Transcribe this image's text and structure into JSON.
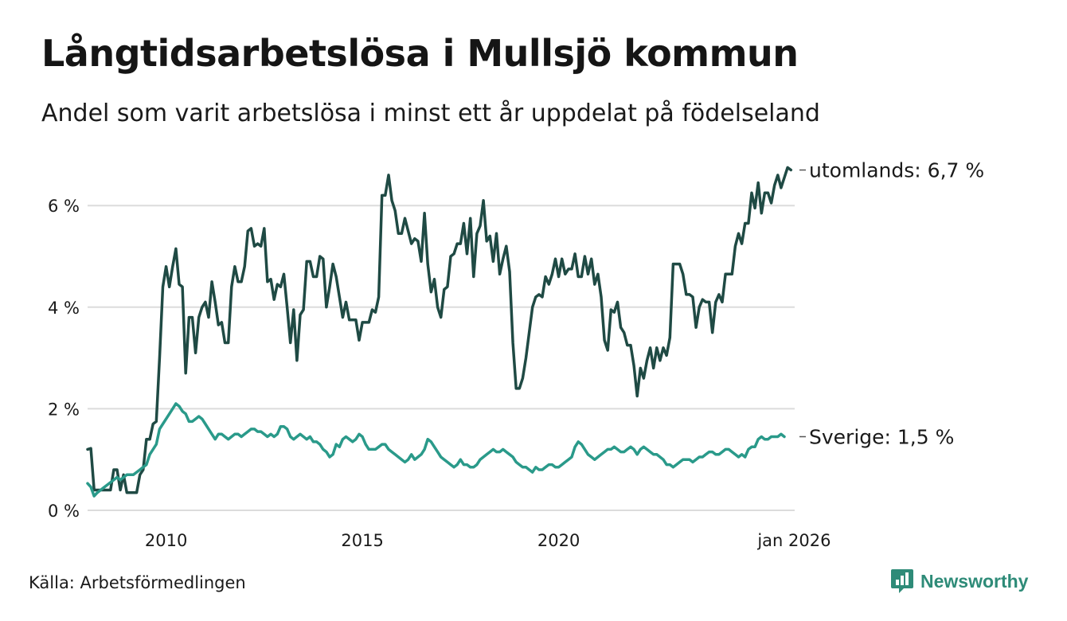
{
  "title": "Långtidsarbetslösa i Mullsjö kommun",
  "subtitle": "Andel som varit arbetslösa i minst ett år uppdelat på födelseland",
  "source": "Källa: Arbetsförmedlingen",
  "brand": "Newsworthy",
  "colors": {
    "utomlands": "#1f4a44",
    "sverige": "#2a9a8a",
    "grid": "#dcdcdc",
    "brand": "#2e8b78"
  },
  "chart_data": {
    "type": "line",
    "x_start": 2008.0,
    "x_step": 0.08333,
    "xlim": [
      2008.0,
      2026.0
    ],
    "ylim": [
      0,
      7
    ],
    "yticks": [
      0,
      2,
      4,
      6
    ],
    "ytick_labels": [
      "0 %",
      "2 %",
      "4 %",
      "6 %"
    ],
    "xticks": [
      2010,
      2015,
      2020,
      2026
    ],
    "xtick_labels": [
      "2010",
      "2015",
      "2020",
      "jan 2026"
    ],
    "grid": true,
    "series": [
      {
        "name": "utomlands",
        "label": "utomlands: 6,7 %",
        "values": [
          1.2,
          1.22,
          0.4,
          0.4,
          0.4,
          0.4,
          0.4,
          0.4,
          0.8,
          0.8,
          0.4,
          0.7,
          0.35,
          0.35,
          0.35,
          0.35,
          0.7,
          0.8,
          1.4,
          1.4,
          1.7,
          1.75,
          3.0,
          4.4,
          4.8,
          4.4,
          4.8,
          5.15,
          4.45,
          4.4,
          2.7,
          3.8,
          3.8,
          3.1,
          3.8,
          4.0,
          4.1,
          3.8,
          4.5,
          4.1,
          3.65,
          3.7,
          3.3,
          3.3,
          4.4,
          4.8,
          4.5,
          4.5,
          4.8,
          5.5,
          5.55,
          5.2,
          5.25,
          5.2,
          5.55,
          4.5,
          4.55,
          4.15,
          4.45,
          4.4,
          4.65,
          4.0,
          3.3,
          3.95,
          2.95,
          3.85,
          3.95,
          4.9,
          4.9,
          4.6,
          4.6,
          5.0,
          4.95,
          4.0,
          4.4,
          4.85,
          4.6,
          4.2,
          3.8,
          4.1,
          3.75,
          3.75,
          3.75,
          3.35,
          3.7,
          3.7,
          3.7,
          3.95,
          3.9,
          4.2,
          6.2,
          6.2,
          6.6,
          6.1,
          5.9,
          5.45,
          5.45,
          5.75,
          5.5,
          5.25,
          5.35,
          5.3,
          4.9,
          5.85,
          4.85,
          4.3,
          4.55,
          4.0,
          3.8,
          4.35,
          4.4,
          5.0,
          5.05,
          5.25,
          5.25,
          5.65,
          5.05,
          5.75,
          4.6,
          5.45,
          5.6,
          6.1,
          5.3,
          5.4,
          4.9,
          5.45,
          4.65,
          4.95,
          5.2,
          4.7,
          3.3,
          2.4,
          2.4,
          2.6,
          3.0,
          3.5,
          4.0,
          4.2,
          4.25,
          4.2,
          4.6,
          4.45,
          4.65,
          4.95,
          4.6,
          4.95,
          4.65,
          4.75,
          4.75,
          5.05,
          4.6,
          4.6,
          5.0,
          4.65,
          4.95,
          4.45,
          4.65,
          4.2,
          3.35,
          3.15,
          3.95,
          3.9,
          4.1,
          3.6,
          3.5,
          3.25,
          3.25,
          2.85,
          2.25,
          2.8,
          2.6,
          2.95,
          3.2,
          2.8,
          3.2,
          2.95,
          3.2,
          3.05,
          3.4,
          4.85,
          4.85,
          4.85,
          4.65,
          4.25,
          4.25,
          4.2,
          3.6,
          4.0,
          4.15,
          4.1,
          4.1,
          3.5,
          4.1,
          4.25,
          4.1,
          4.65,
          4.65,
          4.65,
          5.2,
          5.45,
          5.25,
          5.65,
          5.65,
          6.25,
          5.95,
          6.45,
          5.85,
          6.25,
          6.25,
          6.05,
          6.4,
          6.6,
          6.35,
          6.55,
          6.75,
          6.7
        ]
      },
      {
        "name": "sverige",
        "label": "Sverige: 1,5 %",
        "values": [
          0.53,
          0.46,
          0.28,
          0.35,
          0.4,
          0.45,
          0.5,
          0.55,
          0.6,
          0.65,
          0.6,
          0.65,
          0.7,
          0.7,
          0.7,
          0.75,
          0.8,
          0.85,
          0.9,
          1.1,
          1.2,
          1.3,
          1.6,
          1.7,
          1.8,
          1.9,
          2.0,
          2.1,
          2.05,
          1.95,
          1.9,
          1.75,
          1.75,
          1.8,
          1.85,
          1.8,
          1.7,
          1.6,
          1.5,
          1.4,
          1.5,
          1.5,
          1.45,
          1.4,
          1.45,
          1.5,
          1.5,
          1.45,
          1.5,
          1.55,
          1.6,
          1.6,
          1.55,
          1.55,
          1.5,
          1.45,
          1.5,
          1.45,
          1.5,
          1.65,
          1.65,
          1.6,
          1.45,
          1.4,
          1.45,
          1.5,
          1.45,
          1.4,
          1.45,
          1.35,
          1.35,
          1.3,
          1.2,
          1.15,
          1.05,
          1.1,
          1.3,
          1.25,
          1.4,
          1.45,
          1.4,
          1.35,
          1.4,
          1.5,
          1.45,
          1.3,
          1.2,
          1.2,
          1.2,
          1.25,
          1.3,
          1.3,
          1.2,
          1.15,
          1.1,
          1.05,
          1.0,
          0.95,
          1.0,
          1.1,
          1.0,
          1.05,
          1.1,
          1.2,
          1.4,
          1.35,
          1.25,
          1.15,
          1.05,
          1.0,
          0.95,
          0.9,
          0.85,
          0.9,
          1.0,
          0.9,
          0.9,
          0.85,
          0.85,
          0.9,
          1.0,
          1.05,
          1.1,
          1.15,
          1.2,
          1.15,
          1.15,
          1.2,
          1.15,
          1.1,
          1.05,
          0.95,
          0.9,
          0.85,
          0.85,
          0.8,
          0.75,
          0.85,
          0.8,
          0.8,
          0.85,
          0.9,
          0.9,
          0.85,
          0.85,
          0.9,
          0.95,
          1.0,
          1.05,
          1.25,
          1.35,
          1.3,
          1.2,
          1.1,
          1.05,
          1.0,
          1.05,
          1.1,
          1.15,
          1.2,
          1.2,
          1.25,
          1.2,
          1.15,
          1.15,
          1.2,
          1.25,
          1.2,
          1.1,
          1.2,
          1.25,
          1.2,
          1.15,
          1.1,
          1.1,
          1.05,
          1.0,
          0.9,
          0.9,
          0.85,
          0.9,
          0.95,
          1.0,
          1.0,
          1.0,
          0.95,
          1.0,
          1.05,
          1.05,
          1.1,
          1.15,
          1.15,
          1.1,
          1.1,
          1.15,
          1.2,
          1.2,
          1.15,
          1.1,
          1.05,
          1.1,
          1.05,
          1.2,
          1.25,
          1.25,
          1.4,
          1.45,
          1.4,
          1.4,
          1.45,
          1.45,
          1.45,
          1.5,
          1.45
        ]
      }
    ]
  }
}
